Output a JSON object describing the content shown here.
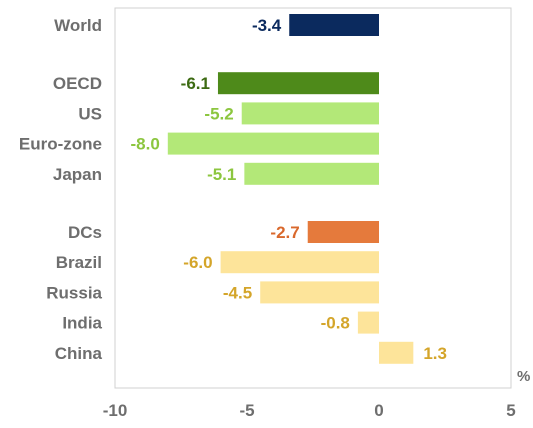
{
  "chart_data": {
    "type": "bar",
    "orientation": "horizontal",
    "title": "",
    "xlabel": "",
    "ylabel": "",
    "unit": "%",
    "xlim": [
      -10,
      5
    ],
    "xticks": [
      "-10",
      "-5",
      "0",
      "5"
    ],
    "grid": false,
    "groups": [
      {
        "bars": [
          {
            "category": "World",
            "value": -3.4,
            "label": "-3.4",
            "color": "#0b2a5e",
            "label_color": "#0b2a5e"
          }
        ]
      },
      {
        "bars": [
          {
            "category": "OECD",
            "value": -6.1,
            "label": "-6.1",
            "color": "#4e8a1a",
            "label_color": "#3c6a12"
          },
          {
            "category": "US",
            "value": -5.2,
            "label": "-5.2",
            "color": "#b3e878",
            "label_color": "#8cc63f"
          },
          {
            "category": "Euro-zone",
            "value": -8.0,
            "label": "-8.0",
            "color": "#b3e878",
            "label_color": "#8cc63f"
          },
          {
            "category": "Japan",
            "value": -5.1,
            "label": "-5.1",
            "color": "#b3e878",
            "label_color": "#8cc63f"
          }
        ]
      },
      {
        "bars": [
          {
            "category": "DCs",
            "value": -2.7,
            "label": "-2.7",
            "color": "#e57a3c",
            "label_color": "#d9682c"
          },
          {
            "category": "Brazil",
            "value": -6.0,
            "label": "-6.0",
            "color": "#fde49a",
            "label_color": "#d4a52a"
          },
          {
            "category": "Russia",
            "value": -4.5,
            "label": "-4.5",
            "color": "#fde49a",
            "label_color": "#d4a52a"
          },
          {
            "category": "India",
            "value": -0.8,
            "label": "-0.8",
            "color": "#fde49a",
            "label_color": "#d4a52a"
          },
          {
            "category": "China",
            "value": 1.3,
            "label": "1.3",
            "color": "#fde49a",
            "label_color": "#d4a52a"
          }
        ]
      }
    ],
    "axis_color": "#d0d0d0",
    "text_color": "#6e6e6e"
  }
}
